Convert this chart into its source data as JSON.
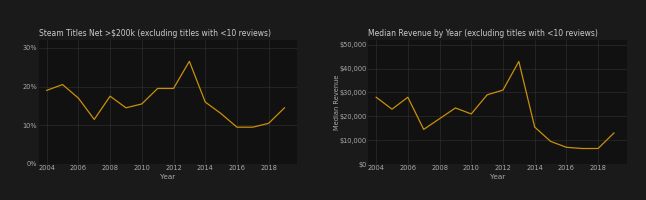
{
  "background_color": "#1a1a1a",
  "plot_bg_color": "#111111",
  "line_color": "#c8900a",
  "grid_color": "#333333",
  "text_color": "#aaaaaa",
  "title_color": "#cccccc",
  "chart1": {
    "title": "Steam Titles Net >$200k (excluding titles with <10 reviews)",
    "xlabel": "Year",
    "ylabel": "",
    "years": [
      2004,
      2005,
      2006,
      2007,
      2008,
      2009,
      2010,
      2011,
      2012,
      2013,
      2014,
      2015,
      2016,
      2017,
      2018,
      2019
    ],
    "values": [
      0.19,
      0.205,
      0.17,
      0.115,
      0.175,
      0.145,
      0.155,
      0.195,
      0.195,
      0.265,
      0.16,
      0.13,
      0.095,
      0.095,
      0.105,
      0.145
    ],
    "ylim": [
      0,
      0.32
    ],
    "yticks": [
      0,
      0.1,
      0.2,
      0.3
    ],
    "ytick_labels": [
      "0%",
      "10%",
      "20%",
      "30%"
    ],
    "xticks": [
      2004,
      2006,
      2008,
      2010,
      2012,
      2014,
      2016,
      2018
    ]
  },
  "chart2": {
    "title": "Median Revenue by Year (excluding titles with <10 reviews)",
    "xlabel": "Year",
    "ylabel": "Median Revenue",
    "years": [
      2004,
      2005,
      2006,
      2007,
      2008,
      2009,
      2010,
      2011,
      2012,
      2013,
      2014,
      2015,
      2016,
      2017,
      2018,
      2019
    ],
    "values": [
      28000,
      23000,
      28000,
      14500,
      19000,
      23500,
      21000,
      29000,
      31000,
      43000,
      15500,
      9500,
      7000,
      6500,
      6500,
      13000
    ],
    "ylim": [
      0,
      52000
    ],
    "yticks": [
      0,
      10000,
      20000,
      30000,
      40000,
      50000
    ],
    "ytick_labels": [
      "$0",
      "$10,000",
      "$20,000",
      "$30,000",
      "$40,000",
      "$50,000"
    ],
    "xticks": [
      2004,
      2006,
      2008,
      2010,
      2012,
      2014,
      2016,
      2018
    ]
  }
}
